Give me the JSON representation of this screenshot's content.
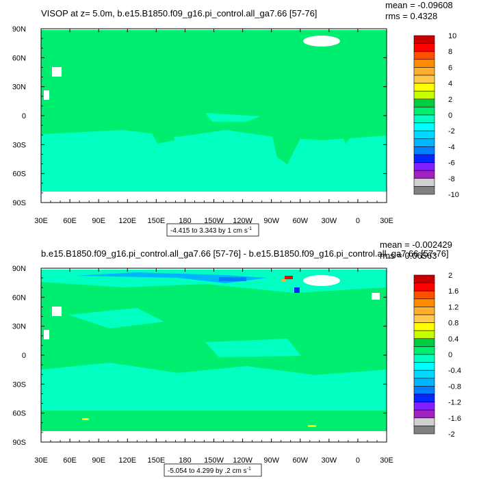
{
  "chart_data": [
    {
      "type": "heatmap",
      "title_main": "VISOP at z=   5.0m, b.e15.B1850.f09_g16.pi_control.all_ga7.66 [57-76]",
      "stats": {
        "mean": "mean = -0.09608",
        "rms": "rms = 0.4328"
      },
      "range_label": "-4.415 to 3.343 by 1 cm s",
      "range_unit_sup": "-1",
      "x_ticks": [
        "30E",
        "60E",
        "90E",
        "120E",
        "150E",
        "180",
        "150W",
        "120W",
        "90W",
        "60W",
        "30W",
        "0",
        "30E"
      ],
      "y_ticks": [
        "90N",
        "60N",
        "30N",
        "0",
        "30S",
        "60S",
        "90S"
      ],
      "xlim": [
        30,
        390
      ],
      "ylim": [
        -90,
        90
      ],
      "colorbar": {
        "labels": [
          "10",
          "8",
          "6",
          "4",
          "2",
          "0",
          "-2",
          "-4",
          "-6",
          "-8",
          "-10"
        ],
        "colors": [
          "#c80000",
          "#ff0000",
          "#ff5000",
          "#ff8c00",
          "#ffae30",
          "#ffc850",
          "#ffff00",
          "#c8ff00",
          "#00cc40",
          "#00ee70",
          "#00ffc0",
          "#00ffff",
          "#00d8ff",
          "#00b4ff",
          "#0080ff",
          "#0028ff",
          "#8020ff",
          "#a020c0",
          "#d0d0d0",
          "#808080"
        ]
      },
      "field_color": "#00ee70",
      "ocean_secondary_color": "#00ffc0"
    },
    {
      "type": "heatmap",
      "title_main": "b.e15.B1850.f09_g16.pi_control.all_ga7.66 [57-76] - b.e15.B1850.f09_g16.pi_control.all_ga7.66 [57-76]",
      "stats": {
        "mean": "mean = -0.002429",
        "rms": "rms = 0.06563"
      },
      "range_label": "-5.054 to 4.299 by .2 cm s",
      "range_unit_sup": "-1",
      "x_ticks": [
        "30E",
        "60E",
        "90E",
        "120E",
        "150E",
        "180",
        "150W",
        "120W",
        "90W",
        "60W",
        "30W",
        "0",
        "30E"
      ],
      "y_ticks": [
        "90N",
        "60N",
        "30N",
        "0",
        "30S",
        "60S",
        "90S"
      ],
      "xlim": [
        30,
        390
      ],
      "ylim": [
        -90,
        90
      ],
      "colorbar": {
        "labels": [
          "2",
          "1.6",
          "1.2",
          "0.8",
          "0.4",
          "0",
          "-0.4",
          "-0.8",
          "-1.2",
          "-1.6",
          "-2"
        ],
        "colors": [
          "#c80000",
          "#ff0000",
          "#ff5000",
          "#ff8c00",
          "#ffae30",
          "#ffc850",
          "#ffff00",
          "#c8ff00",
          "#00cc40",
          "#00ee70",
          "#00ffc0",
          "#00ffff",
          "#00d8ff",
          "#00b4ff",
          "#0080ff",
          "#0028ff",
          "#8020ff",
          "#a020c0",
          "#d0d0d0",
          "#808080"
        ]
      },
      "field_color": "#00ee70",
      "ocean_secondary_color": "#00ffc0"
    }
  ]
}
